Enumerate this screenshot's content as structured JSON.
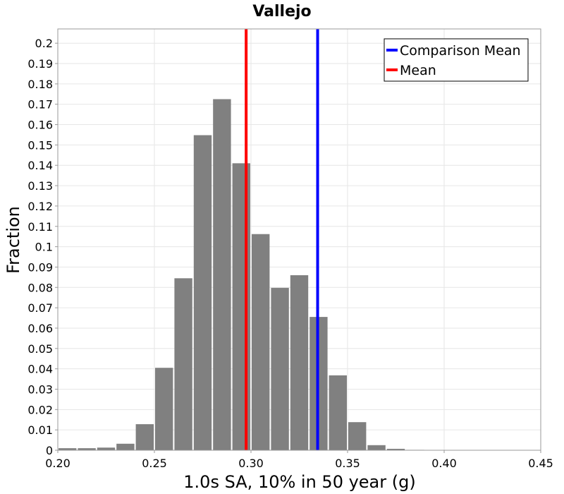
{
  "chart_data": {
    "type": "bar",
    "title": "Vallejo",
    "xlabel": "1.0s SA, 10% in 50 year (g)",
    "ylabel": "Fraction",
    "xlim": [
      0.2,
      0.45
    ],
    "ylim": [
      0,
      0.207
    ],
    "xticks": [
      0.2,
      0.25,
      0.3,
      0.35,
      0.4,
      0.45
    ],
    "xtick_labels": [
      "0.20",
      "0.25",
      "0.30",
      "0.35",
      "0.40",
      "0.45"
    ],
    "yticks": [
      0,
      0.01,
      0.02,
      0.03,
      0.04,
      0.05,
      0.06,
      0.07,
      0.08,
      0.09,
      0.1,
      0.11,
      0.12,
      0.13,
      0.14,
      0.15,
      0.16,
      0.17,
      0.18,
      0.19,
      0.2
    ],
    "ytick_labels": [
      "0",
      "0.01",
      "0.02",
      "0.03",
      "0.04",
      "0.05",
      "0.06",
      "0.07",
      "0.08",
      "0.09",
      "0.1",
      "0.11",
      "0.12",
      "0.13",
      "0.14",
      "0.15",
      "0.16",
      "0.17",
      "0.18",
      "0.19",
      "0.2"
    ],
    "bin_width": 0.01,
    "bins": [
      {
        "x": 0.205,
        "value": 0.001
      },
      {
        "x": 0.215,
        "value": 0.001
      },
      {
        "x": 0.225,
        "value": 0.0013
      },
      {
        "x": 0.235,
        "value": 0.0032
      },
      {
        "x": 0.245,
        "value": 0.0128
      },
      {
        "x": 0.255,
        "value": 0.0405
      },
      {
        "x": 0.265,
        "value": 0.0845
      },
      {
        "x": 0.275,
        "value": 0.1548
      },
      {
        "x": 0.285,
        "value": 0.1725
      },
      {
        "x": 0.295,
        "value": 0.141
      },
      {
        "x": 0.305,
        "value": 0.1062
      },
      {
        "x": 0.315,
        "value": 0.0798
      },
      {
        "x": 0.325,
        "value": 0.086
      },
      {
        "x": 0.335,
        "value": 0.0655
      },
      {
        "x": 0.345,
        "value": 0.0368
      },
      {
        "x": 0.355,
        "value": 0.0138
      },
      {
        "x": 0.365,
        "value": 0.0025
      },
      {
        "x": 0.375,
        "value": 0.0007
      },
      {
        "x": 0.385,
        "value": 0.0002
      },
      {
        "x": 0.395,
        "value": 0.0001
      }
    ],
    "bar_color": "#808080",
    "lines": [
      {
        "name": "Comparison Mean",
        "x": 0.3345,
        "color": "#0000ff"
      },
      {
        "name": "Mean",
        "x": 0.2975,
        "color": "#ff0000"
      }
    ],
    "legend_position": "top-right",
    "grid": true
  }
}
